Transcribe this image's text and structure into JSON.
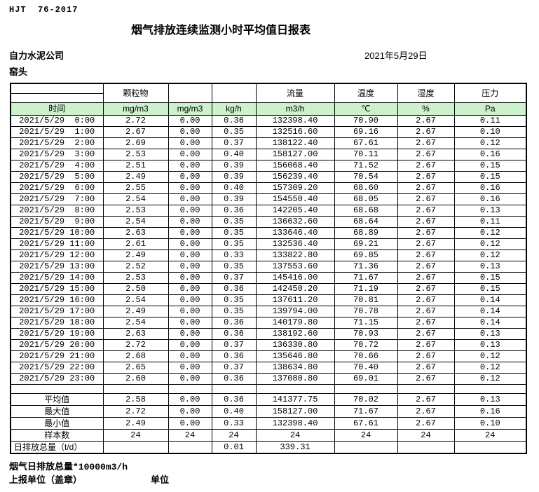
{
  "page": {
    "standard_code": "HJT  76-2017",
    "title": "烟气排放连续监测小时平均值日报表",
    "company": "自力水泥公司",
    "date": "2021年5月29日",
    "station": "窑头"
  },
  "colors": {
    "header_green": "#ccf2cc",
    "border": "#000000",
    "background": "#ffffff",
    "text": "#000000"
  },
  "table": {
    "header": {
      "time_label": "时间",
      "particulate_label": "颗粒物",
      "flow_label": "流量",
      "temperature_label": "温度",
      "humidity_label": "湿度",
      "pressure_label": "压力",
      "units": [
        "mg/m3",
        "mg/m3",
        "kg/h",
        "m3/h",
        "℃",
        "%",
        "Pa"
      ]
    },
    "data_rows": [
      [
        "2021/5/29  0:00",
        "2.72",
        "0.00",
        "0.36",
        "132398.40",
        "70.90",
        "2.67",
        "0.11"
      ],
      [
        "2021/5/29  1:00",
        "2.67",
        "0.00",
        "0.35",
        "132516.60",
        "69.16",
        "2.67",
        "0.10"
      ],
      [
        "2021/5/29  2:00",
        "2.69",
        "0.00",
        "0.37",
        "138122.40",
        "67.61",
        "2.67",
        "0.12"
      ],
      [
        "2021/5/29  3:00",
        "2.53",
        "0.00",
        "0.40",
        "158127.00",
        "70.11",
        "2.67",
        "0.16"
      ],
      [
        "2021/5/29  4:00",
        "2.51",
        "0.00",
        "0.39",
        "156068.40",
        "71.52",
        "2.67",
        "0.15"
      ],
      [
        "2021/5/29  5:00",
        "2.49",
        "0.00",
        "0.39",
        "156239.40",
        "70.54",
        "2.67",
        "0.15"
      ],
      [
        "2021/5/29  6:00",
        "2.55",
        "0.00",
        "0.40",
        "157309.20",
        "68.60",
        "2.67",
        "0.16"
      ],
      [
        "2021/5/29  7:00",
        "2.54",
        "0.00",
        "0.39",
        "154550.40",
        "68.05",
        "2.67",
        "0.16"
      ],
      [
        "2021/5/29  8:00",
        "2.53",
        "0.00",
        "0.36",
        "142205.40",
        "68.68",
        "2.67",
        "0.13"
      ],
      [
        "2021/5/29  9:00",
        "2.54",
        "0.00",
        "0.35",
        "136632.60",
        "68.64",
        "2.67",
        "0.11"
      ],
      [
        "2021/5/29 10:00",
        "2.63",
        "0.00",
        "0.35",
        "133646.40",
        "68.89",
        "2.67",
        "0.12"
      ],
      [
        "2021/5/29 11:00",
        "2.61",
        "0.00",
        "0.35",
        "132536.40",
        "69.21",
        "2.67",
        "0.12"
      ],
      [
        "2021/5/29 12:00",
        "2.49",
        "0.00",
        "0.33",
        "133822.80",
        "69.85",
        "2.67",
        "0.12"
      ],
      [
        "2021/5/29 13:00",
        "2.52",
        "0.00",
        "0.35",
        "137553.60",
        "71.36",
        "2.67",
        "0.13"
      ],
      [
        "2021/5/29 14:00",
        "2.53",
        "0.00",
        "0.37",
        "145416.00",
        "71.67",
        "2.67",
        "0.15"
      ],
      [
        "2021/5/29 15:00",
        "2.50",
        "0.00",
        "0.36",
        "142450.20",
        "71.19",
        "2.67",
        "0.15"
      ],
      [
        "2021/5/29 16:00",
        "2.54",
        "0.00",
        "0.35",
        "137611.20",
        "70.81",
        "2.67",
        "0.14"
      ],
      [
        "2021/5/29 17:00",
        "2.49",
        "0.00",
        "0.35",
        "139794.00",
        "70.78",
        "2.67",
        "0.14"
      ],
      [
        "2021/5/29 18:00",
        "2.54",
        "0.00",
        "0.36",
        "140179.80",
        "71.15",
        "2.67",
        "0.14"
      ],
      [
        "2021/5/29 19:00",
        "2.63",
        "0.00",
        "0.36",
        "138192.60",
        "70.93",
        "2.67",
        "0.13"
      ],
      [
        "2021/5/29 20:00",
        "2.72",
        "0.00",
        "0.37",
        "136330.80",
        "70.72",
        "2.67",
        "0.13"
      ],
      [
        "2021/5/29 21:00",
        "2.68",
        "0.00",
        "0.36",
        "135646.80",
        "70.66",
        "2.67",
        "0.12"
      ],
      [
        "2021/5/29 22:00",
        "2.65",
        "0.00",
        "0.37",
        "138634.80",
        "70.40",
        "2.67",
        "0.12"
      ],
      [
        "2021/5/29 23:00",
        "2.60",
        "0.00",
        "0.36",
        "137080.80",
        "69.01",
        "2.67",
        "0.12"
      ]
    ],
    "summary_rows": [
      [
        "平均值",
        "2.58",
        "0.00",
        "0.36",
        "141377.75",
        "70.02",
        "2.67",
        "0.13"
      ],
      [
        "最大值",
        "2.72",
        "0.00",
        "0.40",
        "158127.00",
        "71.67",
        "2.67",
        "0.16"
      ],
      [
        "最小值",
        "2.49",
        "0.00",
        "0.33",
        "132398.40",
        "67.61",
        "2.67",
        "0.10"
      ],
      [
        "样本数",
        "24",
        "24",
        "24",
        "24",
        "24",
        "24",
        "24"
      ],
      [
        "日排放总量（t/d）",
        "",
        "",
        "0.01",
        "339.31",
        "",
        "",
        ""
      ]
    ]
  },
  "footer": {
    "note": "烟气日排放总量*10000m3/h",
    "report_unit": "上报单位（盖章）",
    "unit_label": "单位"
  }
}
